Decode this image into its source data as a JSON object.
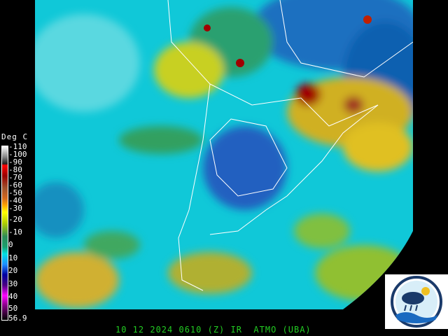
{
  "legend": {
    "title": "Deg C",
    "ticks": [
      "-110",
      "-100",
      "-90",
      "-80",
      "-70",
      "-60",
      "-50",
      "-40",
      "-30",
      "-20",
      "-10",
      "0",
      "10",
      "20",
      "30",
      "40",
      "50",
      "56.9"
    ]
  },
  "footer": {
    "caption": "10 12 2024 0610 (Z) IR  ATMO (UBA)"
  },
  "colors": {
    "caption": "#22cc22",
    "cold_cloud": "#cc0000",
    "clear_sea": "#00d8d8"
  }
}
